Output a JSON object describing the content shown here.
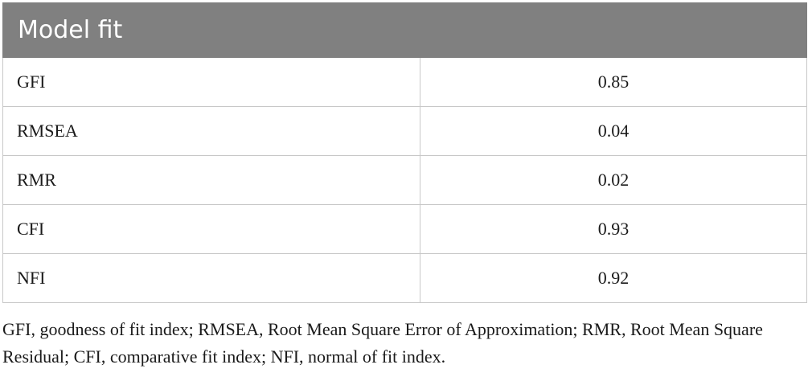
{
  "table": {
    "header": "Model fit",
    "rows": [
      {
        "label": "GFI",
        "value": "0.85"
      },
      {
        "label": "RMSEA",
        "value": "0.04"
      },
      {
        "label": "RMR",
        "value": "0.02"
      },
      {
        "label": "CFI",
        "value": "0.93"
      },
      {
        "label": "NFI",
        "value": "0.92"
      }
    ]
  },
  "footnote": "GFI, goodness of fit index; RMSEA, Root Mean Square Error of Approximation; RMR, Root Mean Square Residual; CFI, comparative fit index; NFI, normal of fit index.",
  "colors": {
    "header_bg": "#808080",
    "header_text": "#ffffff",
    "border": "#c8c8c8"
  }
}
